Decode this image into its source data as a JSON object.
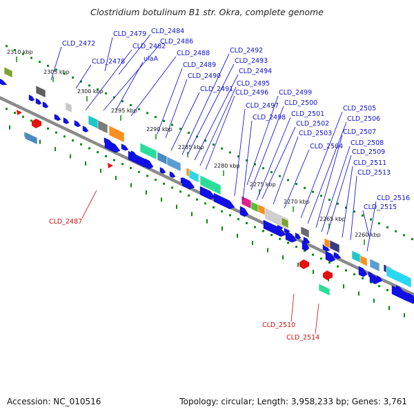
{
  "title": "Clostridium botulinum B1 str. Okra, complete genome",
  "accession": "Accession: NC_010516",
  "topology": "Topology: circular; Length: 3,958,233 bp; Genes: 3,761",
  "colors": {
    "cds": "#1010e6",
    "rna": "#e61010",
    "backbone": "#8a8a8a",
    "ticks": "#0a8a0a",
    "blue_label": "#1010cc",
    "red_label": "#cc1010"
  },
  "scale_ticks": [
    "2310 kbp",
    "2305 kbp",
    "2300 kbp",
    "2295 kbp",
    "2290 kbp",
    "2285 kbp",
    "2280 kbp",
    "2275 kbp",
    "2270 kbp",
    "2265 kbp",
    "2260 kbp"
  ],
  "blue_labels": [
    "CLD_2472",
    "CLD_2479",
    "CLD_2484",
    "CLD_2478",
    "CLD_2482",
    "CLD_2486",
    "ulaA",
    "CLD_2488",
    "CLD_2489",
    "CLD_2490",
    "CLD_2491",
    "CLD_2492",
    "CLD_2493",
    "CLD_2494",
    "CLD_2495",
    "CLD_2496",
    "CLD_2497",
    "CLD_2498",
    "CLD_2499",
    "CLD_2500",
    "CLD_2501",
    "CLD_2502",
    "CLD_2503",
    "CLD_2504",
    "CLD_2505",
    "CLD_2506",
    "CLD_2507",
    "CLD_2508",
    "CLD_2509",
    "CLD_2511",
    "CLD_2513",
    "CLD_2516",
    "CLD_2515"
  ],
  "red_labels": [
    "CLD_2487",
    "CLD_2510",
    "CLD_2514"
  ]
}
